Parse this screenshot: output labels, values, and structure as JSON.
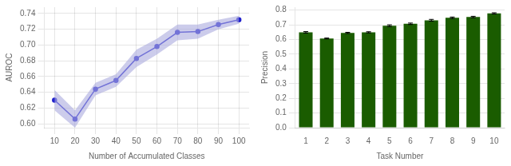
{
  "chart_data": [
    {
      "type": "line",
      "x": [
        10,
        20,
        30,
        40,
        50,
        60,
        70,
        80,
        90,
        100
      ],
      "series": [
        {
          "type": "band",
          "color": "#aaaadd",
          "lower": [
            0.617,
            0.595,
            0.636,
            0.647,
            0.672,
            0.688,
            0.706,
            0.708,
            0.72,
            0.727
          ],
          "upper": [
            0.643,
            0.617,
            0.652,
            0.663,
            0.694,
            0.708,
            0.726,
            0.726,
            0.732,
            0.737
          ]
        },
        {
          "type": "line",
          "color": "#2222cc",
          "marker": "circle",
          "values": [
            0.63,
            0.606,
            0.644,
            0.655,
            0.683,
            0.698,
            0.716,
            0.717,
            0.726,
            0.732
          ]
        }
      ],
      "xlabel": "Number of Accumulated Classes",
      "ylabel": "AUROC",
      "xlim": [
        5,
        105
      ],
      "xticks": [
        10,
        20,
        30,
        40,
        50,
        60,
        70,
        80,
        90,
        100
      ],
      "ylim": [
        0.595,
        0.748
      ],
      "yticks": [
        {
          "value": 0.6,
          "label": "0.60"
        },
        0.62,
        0.64,
        0.66,
        0.68,
        {
          "value": 0.7,
          "label": "0.70"
        },
        0.72,
        0.74
      ],
      "grid": true
    },
    {
      "type": "bar",
      "categories": [
        "1",
        "2",
        "3",
        "4",
        "5",
        "6",
        "7",
        "8",
        "9",
        "10"
      ],
      "values": [
        0.649,
        0.607,
        0.645,
        0.649,
        0.694,
        0.707,
        0.731,
        0.748,
        0.753,
        0.778
      ],
      "yerr": [
        0.005,
        0.003,
        0.004,
        0.004,
        0.006,
        0.005,
        0.006,
        0.005,
        0.005,
        0.004
      ],
      "color": "#1a5c00",
      "xlabel": "Task Number",
      "ylabel": "Precision",
      "ylim": [
        0.0,
        0.82
      ],
      "yticks": [
        {
          "value": 0,
          "label": "0.0"
        },
        0.1,
        0.2,
        0.3,
        0.4,
        0.5,
        0.6,
        0.7,
        0.8
      ],
      "grid": "y"
    }
  ]
}
